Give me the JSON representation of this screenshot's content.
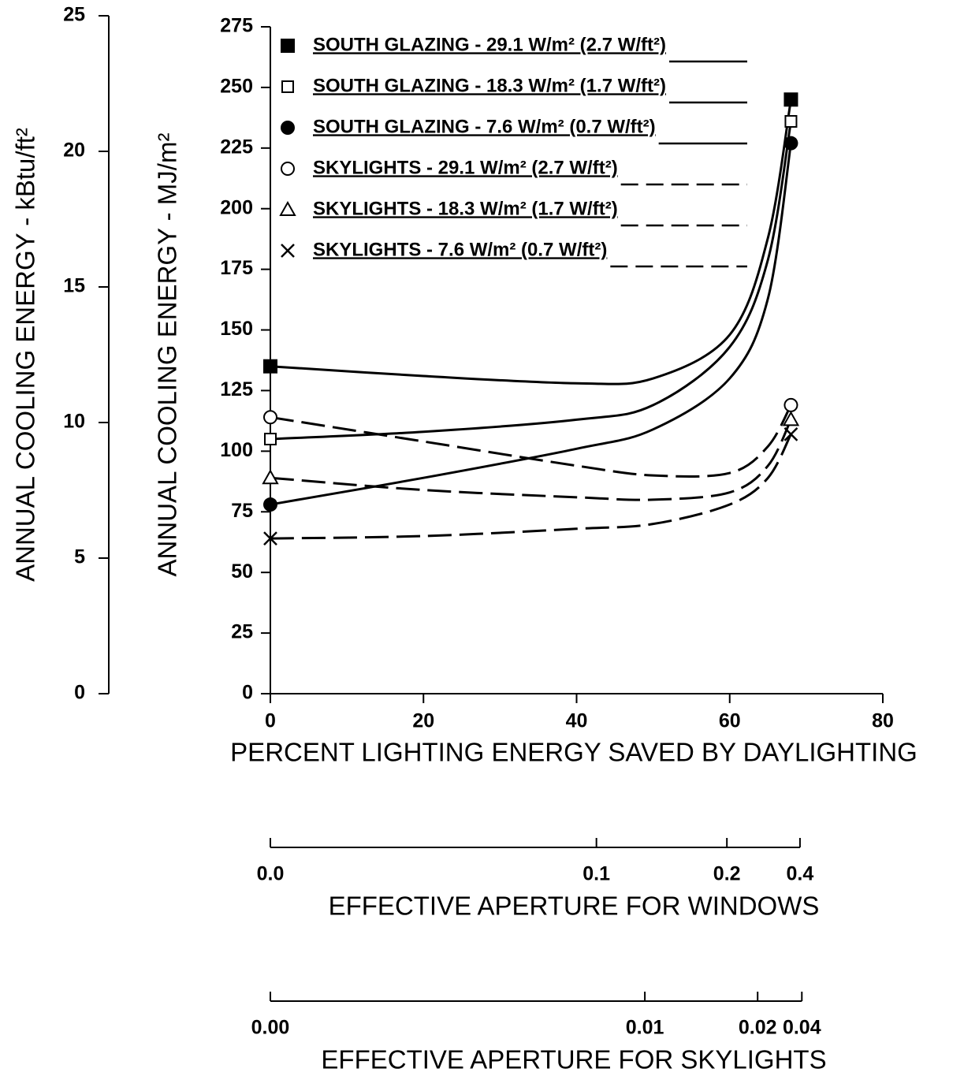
{
  "chart_data": {
    "type": "line",
    "xlabel": "PERCENT LIGHTING ENERGY SAVED BY DAYLIGHTING",
    "ylabel": "ANNUAL COOLING ENERGY - MJ/m²",
    "y2label": "ANNUAL COOLING ENERGY - kBtu/ft²",
    "xlim": [
      0,
      80
    ],
    "xticks": [
      0,
      20,
      40,
      60,
      80
    ],
    "ylim": [
      0,
      275
    ],
    "yticks": [
      0,
      25,
      50,
      75,
      100,
      125,
      150,
      175,
      200,
      225,
      250,
      275
    ],
    "y2lim": [
      0,
      25
    ],
    "y2ticks": [
      0,
      5,
      10,
      15,
      20,
      25
    ],
    "x": [
      0,
      20,
      40,
      50,
      60,
      65,
      68
    ],
    "series": [
      {
        "name": "SOUTH GLAZING - 29.1 W/m² (2.7 W/ft²)",
        "color": "#000",
        "dashed": false,
        "marker": "filled-square",
        "values": [
          135,
          131,
          128,
          130,
          148,
          188,
          245
        ]
      },
      {
        "name": "SOUTH GLAZING - 18.3 W/m² (1.7 W/ft²)",
        "color": "#000",
        "dashed": false,
        "marker": "open-square",
        "values": [
          105,
          108,
          113,
          119,
          143,
          179,
          236
        ]
      },
      {
        "name": "SOUTH GLAZING - 7.6 W/m² (0.7 W/ft²)",
        "color": "#000",
        "dashed": false,
        "marker": "filled-circle",
        "values": [
          78,
          89,
          101,
          109,
          130,
          163,
          227
        ]
      },
      {
        "name": "SKYLIGHTS - 29.1 W/m² (2.7 W/ft²)",
        "color": "#000",
        "dashed": true,
        "marker": "open-circle",
        "values": [
          114,
          104,
          94,
          90,
          91,
          102,
          119
        ]
      },
      {
        "name": "SKYLIGHTS - 18.3 W/m² (1.7 W/ft²)",
        "color": "#000",
        "dashed": true,
        "marker": "open-triangle",
        "values": [
          89,
          84,
          81,
          80,
          83,
          94,
          113
        ]
      },
      {
        "name": "SKYLIGHTS - 7.6 W/m² (0.7 W/ft²)",
        "color": "#000",
        "dashed": true,
        "marker": "cross",
        "values": [
          64,
          65,
          68,
          70,
          78,
          89,
          107
        ]
      }
    ],
    "secondary_x_axes": [
      {
        "label": "EFFECTIVE APERTURE FOR WINDOWS",
        "ticks": [
          {
            "value": 0,
            "label": "0.0"
          },
          0.1,
          0.2,
          0.4
        ]
      },
      {
        "label": "EFFECTIVE APERTURE FOR SKYLIGHTS",
        "ticks": [
          {
            "value": 0,
            "label": "0.00"
          },
          0.01,
          0.02,
          0.04
        ]
      }
    ]
  }
}
